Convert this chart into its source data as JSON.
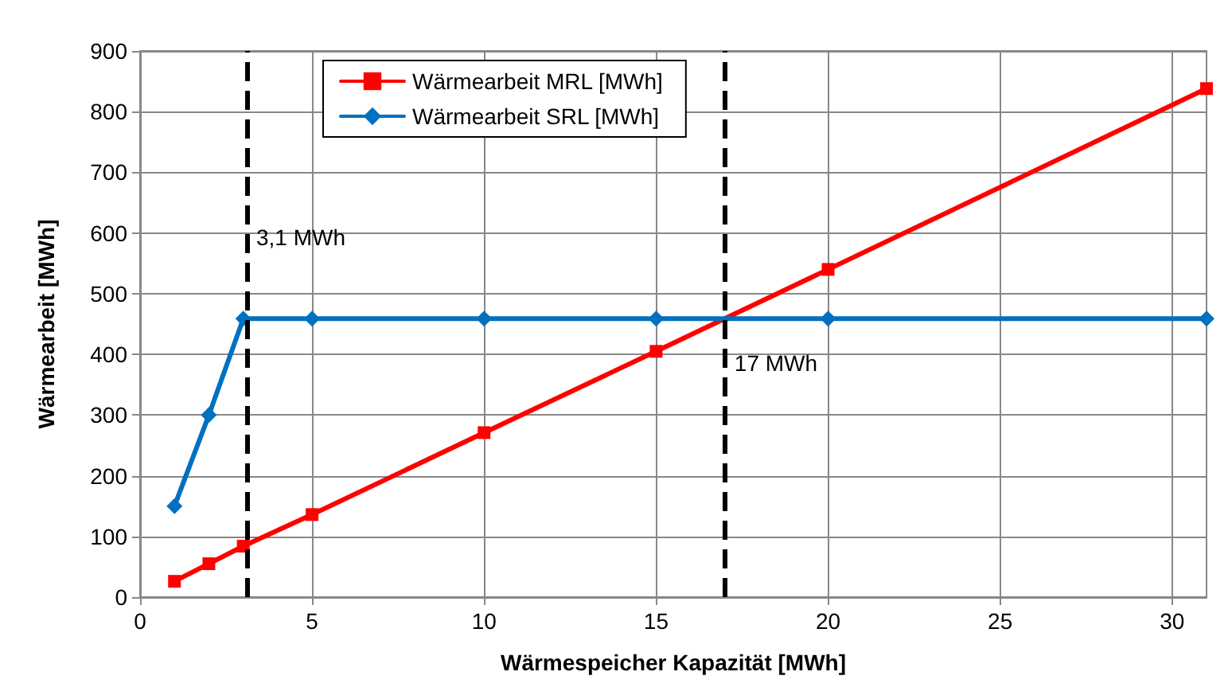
{
  "chart_data": {
    "type": "line",
    "xlabel": "Wärmespeicher Kapazität [MWh]",
    "ylabel": "Wärmearbeit [MWh]",
    "series": [
      {
        "name": "Wärmearbeit MRL [MWh]",
        "color": "#ff0000",
        "marker": "square",
        "x": [
          1,
          2,
          3,
          5,
          10,
          15,
          20,
          31
        ],
        "values": [
          26,
          55,
          84,
          136,
          271,
          405,
          540,
          838
        ]
      },
      {
        "name": "Wärmearbeit SRL [MWh]",
        "color": "#0070c0",
        "marker": "diamond",
        "x": [
          1,
          2,
          3,
          5,
          10,
          15,
          20,
          31
        ],
        "values": [
          150,
          300,
          459,
          459,
          459,
          459,
          459,
          459
        ]
      }
    ],
    "xlim": [
      0,
      31
    ],
    "xticks": [
      0,
      5,
      10,
      15,
      20,
      25,
      30
    ],
    "ylim": [
      0,
      900
    ],
    "yticks": [
      0,
      100,
      200,
      300,
      400,
      500,
      600,
      700,
      800,
      900
    ],
    "ref_lines": [
      {
        "axis": "x",
        "value": 3.1,
        "label": "3,1 MWh",
        "color": "#000000",
        "line_style": "dashed"
      },
      {
        "axis": "x",
        "value": 17,
        "label": "17 MWh",
        "color": "#000000",
        "line_style": "dashed"
      }
    ],
    "grid": true,
    "legend": "top left",
    "line_style": "solid"
  }
}
